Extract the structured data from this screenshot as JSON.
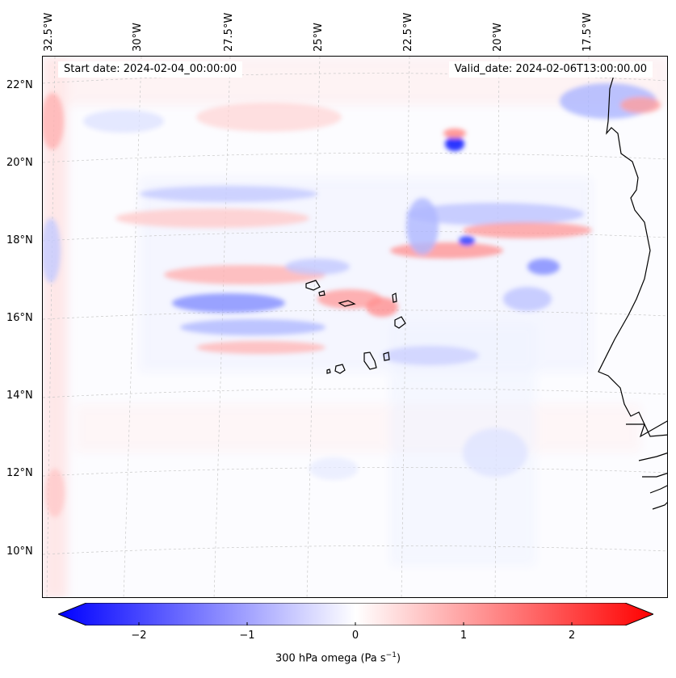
{
  "header": {
    "start_date": "Start date: 2024-02-04_00:00:00",
    "valid_date": "Valid_date: 2024-02-06T13:00:00.00"
  },
  "map": {
    "lon_labels": [
      "32.5°W",
      "30°W",
      "27.5°W",
      "25°W",
      "22.5°W",
      "20°W",
      "17.5°W"
    ],
    "lat_labels": [
      "22°N",
      "20°N",
      "18°N",
      "16°N",
      "14°N",
      "12°N",
      "10°N"
    ],
    "field": "300 hPa omega"
  },
  "colorbar": {
    "ticks": [
      "−2",
      "−1",
      "0",
      "1",
      "2"
    ],
    "label_main": "300 hPa omega (Pa s",
    "label_sup": "−1",
    "label_end": ")",
    "min_color": "#0000ff",
    "mid_color": "#ffffff",
    "max_color": "#ff0000"
  }
}
